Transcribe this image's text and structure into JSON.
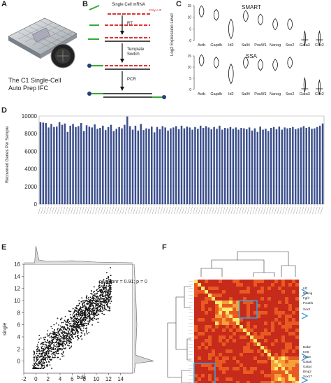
{
  "panels": {
    "a": {
      "letter": "A",
      "caption_line1": "The C1 Single-Cell",
      "caption_line2": "Auto Prep IFC"
    },
    "b": {
      "letter": "B",
      "mrna_label": "Single Cell mRNA",
      "polya_label": "Poly A 3'",
      "step1": "RT",
      "step2_line1": "Template",
      "step2_line2": "Switch",
      "step3": "PCR"
    },
    "c": {
      "letter": "C",
      "top_title": "SMART",
      "bottom_title": "SSA",
      "ylabel": "Log2 Expression Level",
      "genes": [
        "Actb",
        "Gapdh",
        "Id2",
        "Sall4",
        "Pou5f1",
        "Nanog",
        "Sox2",
        "Gata3",
        "Cdx2"
      ],
      "y_ticks": [
        "0",
        "5",
        "10",
        "15"
      ]
    },
    "d": {
      "letter": "D",
      "ylabel": "Recovered Genes Per Sample"
    },
    "e": {
      "letter": "E",
      "xlabel": "bulk",
      "ylabel": "single",
      "annotation": "pearsonr = 0.91; p = 0"
    },
    "f": {
      "letter": "F",
      "gene_labels": [
        "Id2",
        "Nanog",
        "Fgf4",
        "Pou5f1",
        "Sox2",
        "Dab2",
        "Krt8",
        "Krt18",
        "Gata6",
        "Gata4",
        "Bmp2",
        "Sox17"
      ]
    }
  },
  "chart_data": [
    {
      "type": "bar",
      "id": "panel-d",
      "ylabel": "Recovered Genes Per Sample",
      "ylim": [
        0,
        10000
      ],
      "y_ticks": [
        0,
        2000,
        4000,
        6000,
        8000,
        10000
      ],
      "values": [
        9300,
        9250,
        9200,
        8700,
        9100,
        8750,
        8800,
        9300,
        9000,
        9150,
        8200,
        8900,
        9100,
        8750,
        8850,
        9200,
        8300,
        8950,
        8800,
        8700,
        9050,
        8550,
        8650,
        8900,
        8400,
        8750,
        9000,
        8300,
        8550,
        8750,
        8600,
        9000,
        9950,
        8850,
        8450,
        8900,
        8350,
        9100,
        8400,
        8600,
        8550,
        8800,
        8150,
        8750,
        8500,
        8850,
        8700,
        8350,
        8600,
        8700,
        8850,
        8500,
        8900,
        8600,
        8800,
        8700,
        8450,
        8750,
        8550,
        8900,
        8650,
        8850,
        8700,
        8500,
        8750,
        8550,
        8900,
        8450,
        8650,
        8600,
        8750,
        8550,
        8700,
        8450,
        8650,
        8600,
        8500,
        8700,
        8350,
        8600,
        8200,
        8800,
        8450,
        8550,
        8300,
        8650,
        8750,
        8500,
        8800,
        8450,
        8700,
        8600,
        8650,
        8750,
        8500,
        8600,
        8700,
        8850,
        8650,
        8750,
        8550,
        8600,
        8750,
        8900,
        9150
      ],
      "bar_color": "#3b4f8c",
      "grid": true
    },
    {
      "type": "scatter",
      "id": "panel-e",
      "xlabel": "bulk",
      "ylabel": "single",
      "xlim": [
        -2,
        16
      ],
      "ylim": [
        -2,
        16
      ],
      "x_ticks": [
        -2,
        0,
        2,
        4,
        6,
        8,
        10,
        12,
        14
      ],
      "y_ticks": [
        0,
        2,
        4,
        6,
        8,
        10,
        12,
        14,
        16
      ],
      "annotation": "pearsonr = 0.91; p = 0",
      "point_color": "#111111"
    },
    {
      "type": "violin",
      "id": "panel-c-smart",
      "title": "SMART",
      "categories": [
        "Actb",
        "Gapdh",
        "Id2",
        "Sall4",
        "Pou5f1",
        "Nanog",
        "Sox2",
        "Gata3",
        "Cdx2"
      ],
      "medians": [
        12.5,
        11,
        5,
        10.5,
        9,
        7,
        7,
        1,
        1
      ],
      "ylim": [
        0,
        15
      ]
    },
    {
      "type": "violin",
      "id": "panel-c-ssa",
      "title": "SSA",
      "categories": [
        "Actb",
        "Gapdh",
        "Id2",
        "Sall4",
        "Pou5f1",
        "Nanog",
        "Sox2",
        "Gata3",
        "Cdx2"
      ],
      "medians": [
        13,
        12,
        7,
        12,
        11,
        11,
        12,
        2,
        1
      ],
      "ylim": [
        0,
        15
      ]
    },
    {
      "type": "heatmap",
      "id": "panel-f",
      "colormap": [
        "#c62a1a",
        "#e85a22",
        "#f5a13a",
        "#fde86a"
      ]
    }
  ]
}
